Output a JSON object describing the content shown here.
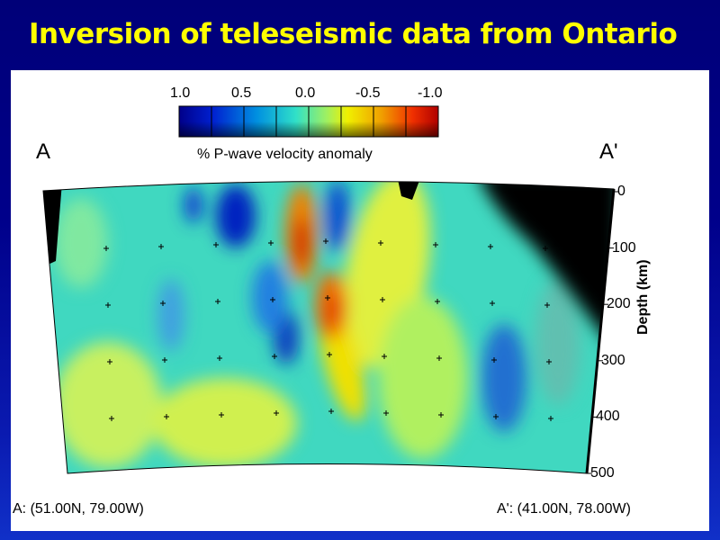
{
  "slide": {
    "title": "Inversion of teleseismic data from Ontario"
  },
  "chart_data": {
    "type": "heatmap",
    "title": "",
    "colorbar": {
      "label": "% P-wave velocity anomaly",
      "ticks": [
        "1.0",
        "0.5",
        "0.0",
        "-0.5",
        "-1.0"
      ],
      "range": [
        1.0,
        -1.0
      ],
      "colors": [
        "#00008a",
        "#0030e0",
        "#00a0e0",
        "#20e0c0",
        "#a0f060",
        "#f0f000",
        "#f0a000",
        "#f04000",
        "#c00000"
      ]
    },
    "section_ends": {
      "left_label": "A",
      "right_label": "A'",
      "left_coord": "A: (51.00N, 79.00W)",
      "right_coord": "A': (41.00N, 78.00W)"
    },
    "yaxis": {
      "label": "Depth (km)",
      "ticks": [
        "0",
        "100",
        "200",
        "300",
        "400",
        "500"
      ],
      "range": [
        0,
        500
      ]
    },
    "features": [
      {
        "description": "low-velocity (red) anomaly",
        "depth_range_km": [
          0,
          300
        ],
        "value": -0.8
      },
      {
        "description": "high-velocity (blue) anomalies",
        "value": 0.8
      }
    ]
  }
}
